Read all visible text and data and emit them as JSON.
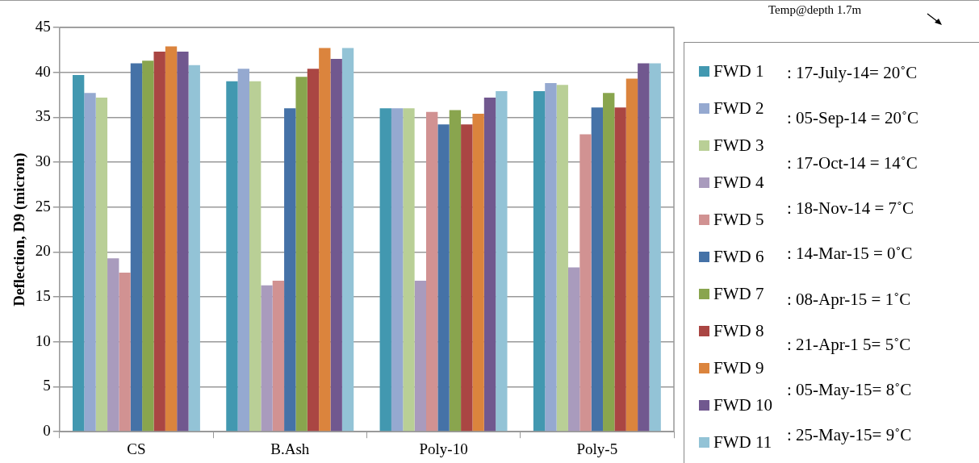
{
  "chart_data": {
    "type": "bar",
    "ylabel": "Deflection, D9 (micron)",
    "categories": [
      "CS",
      "B.Ash",
      "Poly-10",
      "Poly-5"
    ],
    "ylim": [
      0,
      45
    ],
    "yticks": [
      0,
      5,
      10,
      15,
      20,
      25,
      30,
      35,
      40,
      45
    ],
    "grid": "y",
    "legend": "right",
    "series": [
      {
        "name": "FWD 1",
        "color": "#4298b0",
        "values": [
          39.7,
          39.0,
          36.0,
          37.9
        ]
      },
      {
        "name": "FWD 2",
        "color": "#95a9d0",
        "values": [
          37.7,
          40.4,
          36.0,
          38.8
        ]
      },
      {
        "name": "FWD 3",
        "color": "#b9cf96",
        "values": [
          37.2,
          39.0,
          36.0,
          38.6
        ]
      },
      {
        "name": "FWD 4",
        "color": "#a99bbd",
        "values": [
          19.3,
          16.3,
          16.8,
          18.3
        ]
      },
      {
        "name": "FWD 5",
        "color": "#d19292",
        "values": [
          17.7,
          16.8,
          35.6,
          33.1
        ]
      },
      {
        "name": "FWD 6",
        "color": "#4572a7",
        "values": [
          41.0,
          36.0,
          34.2,
          36.1
        ]
      },
      {
        "name": "FWD 7",
        "color": "#89a54e",
        "values": [
          41.3,
          39.5,
          35.8,
          37.7
        ]
      },
      {
        "name": "FWD 8",
        "color": "#aa4643",
        "values": [
          42.3,
          40.4,
          34.2,
          36.1
        ]
      },
      {
        "name": "FWD 9",
        "color": "#db843d",
        "values": [
          42.9,
          42.7,
          35.4,
          39.3
        ]
      },
      {
        "name": "FWD 10",
        "color": "#71588f",
        "values": [
          42.3,
          41.5,
          37.2,
          41.0
        ]
      },
      {
        "name": "FWD 11",
        "color": "#93c3d6",
        "values": [
          40.8,
          42.7,
          37.9,
          41.0
        ]
      }
    ],
    "annotations": [
      "Temp@depth  1.7m",
      ": 17-July-14= 20˚C",
      ": 05-Sep-14 = 20˚C",
      ": 17-Oct-14 = 14˚C",
      ": 18-Nov-14 = 7˚C",
      ": 14-Mar-15 = 0˚C",
      ": 08-Apr-15 = 1˚C",
      ": 21-Apr-1 5= 5˚C",
      ": 05-May-15= 8˚C",
      ": 25-May-15= 9˚C"
    ]
  }
}
